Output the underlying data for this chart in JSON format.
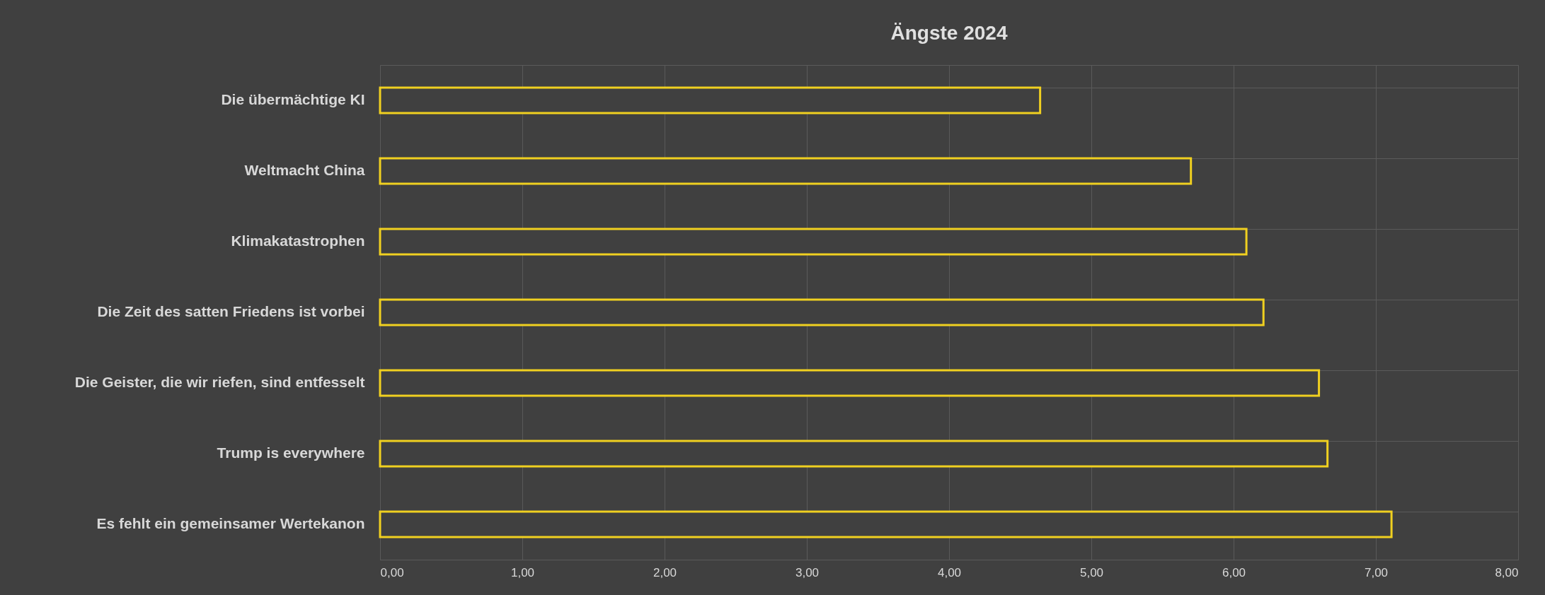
{
  "chart_data": {
    "type": "bar",
    "title": "Ängste 2024",
    "orientation": "horizontal",
    "categories": [
      "Die übermächtige KI",
      "Weltmacht China",
      "Klimakatastrophen",
      "Die Zeit des satten Friedens ist vorbei",
      "Die Geister, die wir riefen, sind entfesselt",
      "Trump is everywhere",
      "Es fehlt ein gemeinsamer Wertekanon"
    ],
    "values": [
      4.64,
      5.7,
      6.09,
      6.21,
      6.6,
      6.66,
      7.11
    ],
    "color": "#f0d020",
    "xlim": [
      0,
      8
    ],
    "xticks": [
      {
        "value": 0,
        "label": "0,00"
      },
      {
        "value": 1,
        "label": "1,00"
      },
      {
        "value": 2,
        "label": "2,00"
      },
      {
        "value": 3,
        "label": "3,00"
      },
      {
        "value": 4,
        "label": "4,00"
      },
      {
        "value": 5,
        "label": "5,00"
      },
      {
        "value": 6,
        "label": "6,00"
      },
      {
        "value": 7,
        "label": "7,00"
      },
      {
        "value": 8,
        "label": "8,00"
      }
    ],
    "grid": true
  }
}
